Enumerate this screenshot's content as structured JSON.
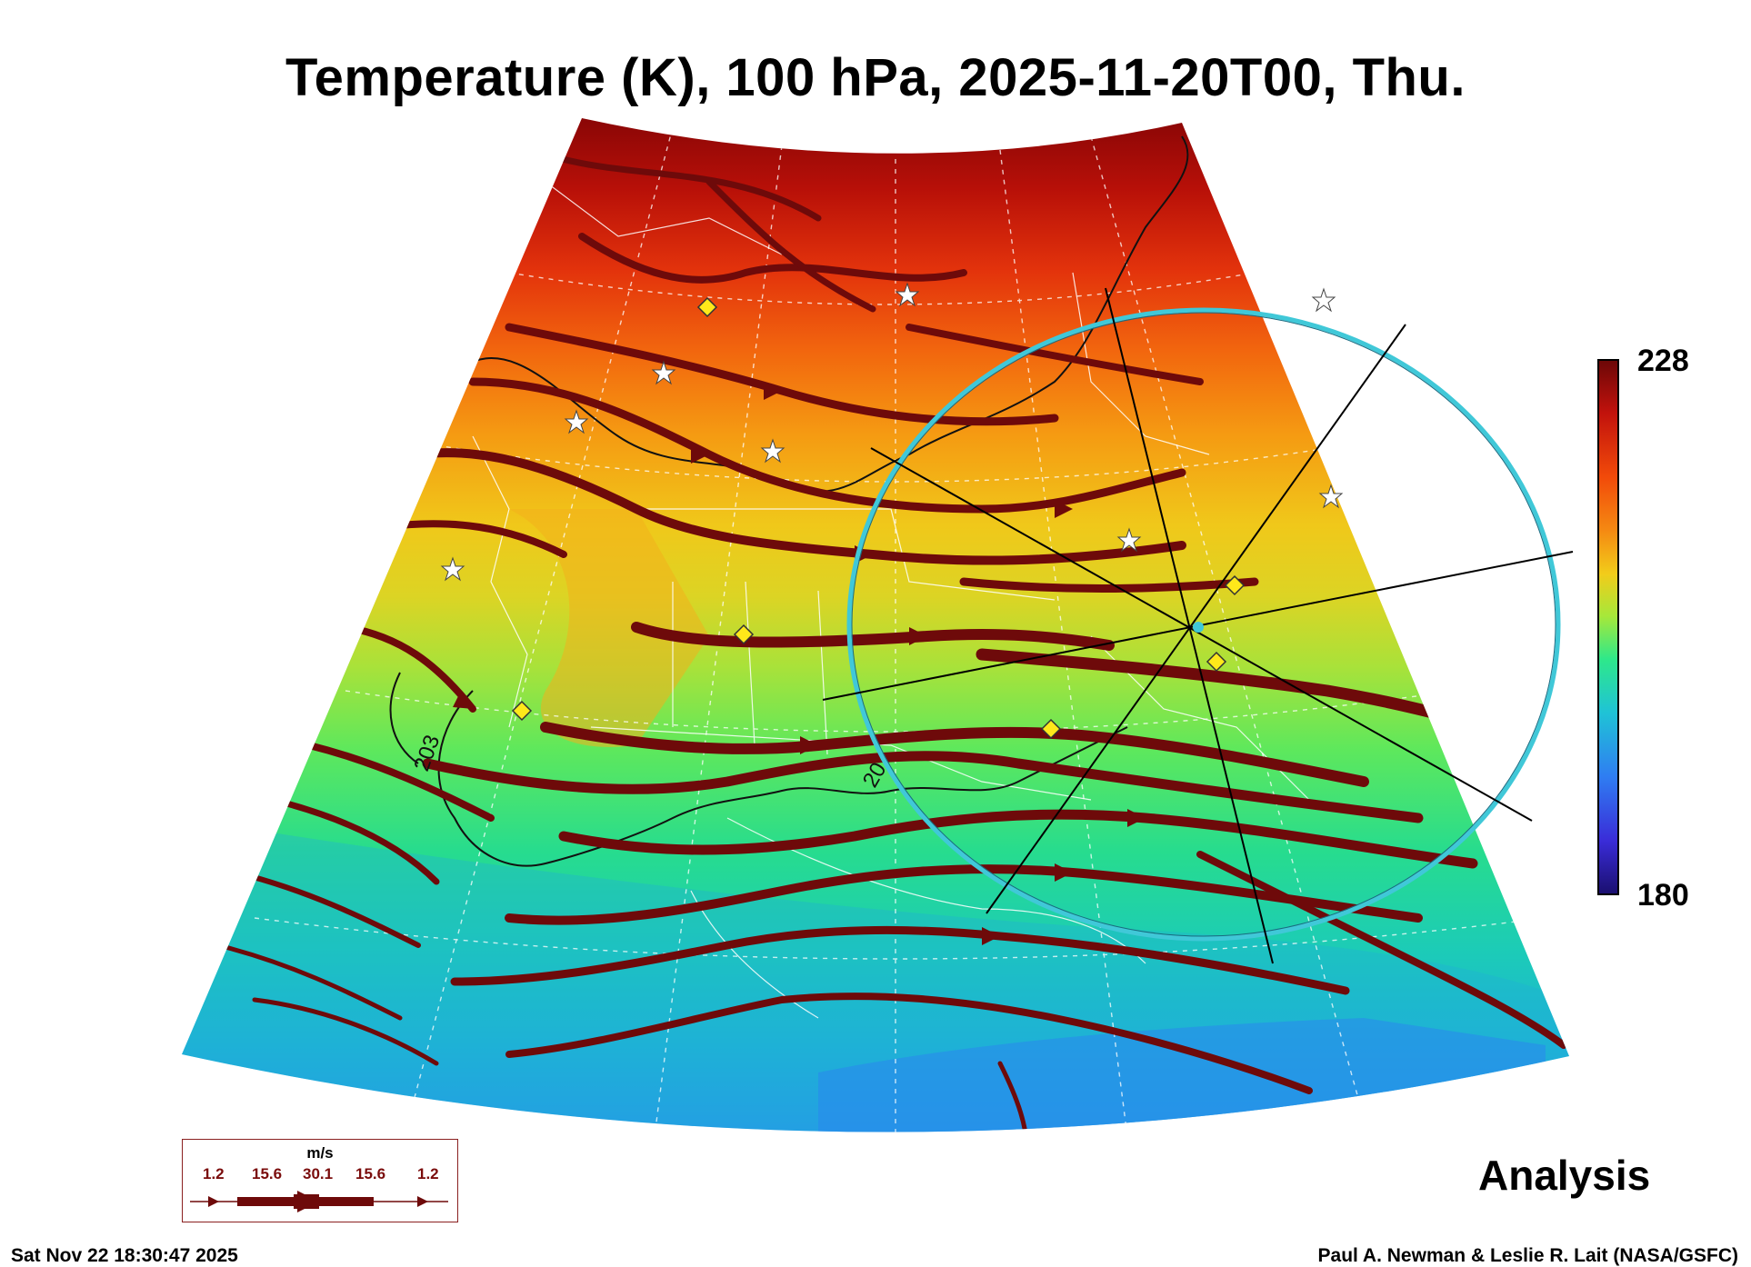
{
  "title": "Temperature (K), 100 hPa, 2025-11-20T00, Thu.",
  "colorbar": {
    "max_label": "228",
    "min_label": "180",
    "colors": [
      "#1a0f6e",
      "#3a2cd8",
      "#2f7df2",
      "#1fc3d6",
      "#2ee88a",
      "#a6e83a",
      "#f2cc1a",
      "#f58a12",
      "#f24b0a",
      "#c2120c",
      "#6b0707"
    ]
  },
  "contour_labels": [
    "203",
    "20"
  ],
  "legend": {
    "unit": "m/s",
    "values": [
      "1.2",
      "15.6",
      "30.1",
      "15.6",
      "1.2"
    ]
  },
  "analysis_label": "Analysis",
  "footer": {
    "timestamp": "Sat Nov 22 18:30:47 2025",
    "credit": "Paul A. Newman & Leslie R. Lait (NASA/GSFC)"
  },
  "colors": {
    "streamline": "#6e0a0a",
    "sounding_ring": "#40c8d8",
    "marker_diamond": "#ffe81a",
    "contour": "#111111"
  }
}
